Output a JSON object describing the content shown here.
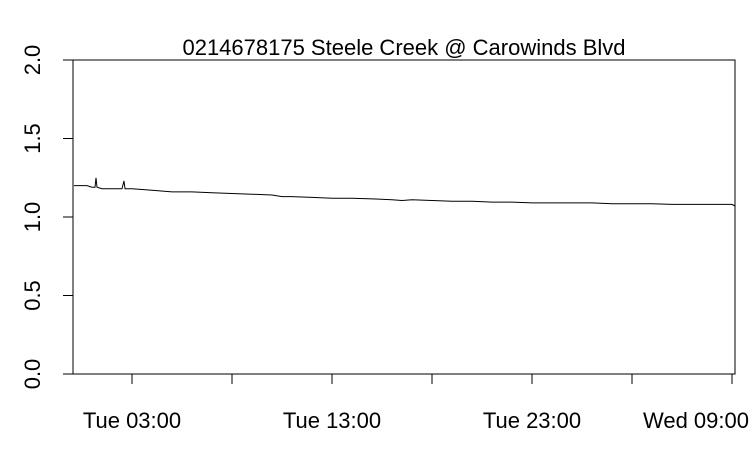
{
  "chart_data": {
    "type": "line",
    "title": "0214678175 Steele Creek @ Carowinds Blvd",
    "xlabel": "",
    "ylabel": "",
    "x_unit": "hours",
    "xlim": [
      -5.9,
      60.3
    ],
    "ylim": [
      0,
      2
    ],
    "x_ticks": [
      {
        "value": 0,
        "label": "Tue 03:00"
      },
      {
        "value": 10,
        "label": ""
      },
      {
        "value": 20,
        "label": "Tue 13:00"
      },
      {
        "value": 30,
        "label": ""
      },
      {
        "value": 40,
        "label": "Tue 23:00"
      },
      {
        "value": 50,
        "label": ""
      },
      {
        "value": 60,
        "label": "Wed 09:00"
      }
    ],
    "y_ticks": [
      {
        "value": 0.0,
        "label": "0.0"
      },
      {
        "value": 0.5,
        "label": "0.5"
      },
      {
        "value": 1.0,
        "label": "1.0"
      },
      {
        "value": 1.5,
        "label": "1.5"
      },
      {
        "value": 2.0,
        "label": "2.0"
      }
    ],
    "grid": false,
    "series": [
      {
        "values": [
          [
            -5.8,
            1.2
          ],
          [
            -4.5,
            1.2
          ],
          [
            -4.0,
            1.19
          ],
          [
            -3.7,
            1.19
          ],
          [
            -3.6,
            1.25
          ],
          [
            -3.5,
            1.19
          ],
          [
            -3.0,
            1.18
          ],
          [
            -2.0,
            1.18
          ],
          [
            -1.0,
            1.18
          ],
          [
            -0.8,
            1.23
          ],
          [
            -0.7,
            1.18
          ],
          [
            0.0,
            1.18
          ],
          [
            2.0,
            1.17
          ],
          [
            4.0,
            1.16
          ],
          [
            6.0,
            1.16
          ],
          [
            8.0,
            1.155
          ],
          [
            10.0,
            1.15
          ],
          [
            12.0,
            1.145
          ],
          [
            14.0,
            1.14
          ],
          [
            15.0,
            1.13
          ],
          [
            16.0,
            1.13
          ],
          [
            18.0,
            1.125
          ],
          [
            20.0,
            1.12
          ],
          [
            22.0,
            1.12
          ],
          [
            24.0,
            1.115
          ],
          [
            26.0,
            1.11
          ],
          [
            27.0,
            1.105
          ],
          [
            28.0,
            1.11
          ],
          [
            30.0,
            1.105
          ],
          [
            32.0,
            1.1
          ],
          [
            34.0,
            1.1
          ],
          [
            36.0,
            1.095
          ],
          [
            38.0,
            1.095
          ],
          [
            40.0,
            1.09
          ],
          [
            42.0,
            1.09
          ],
          [
            44.0,
            1.09
          ],
          [
            46.0,
            1.09
          ],
          [
            48.0,
            1.085
          ],
          [
            50.0,
            1.085
          ],
          [
            52.0,
            1.085
          ],
          [
            54.0,
            1.08
          ],
          [
            56.0,
            1.08
          ],
          [
            58.0,
            1.08
          ],
          [
            60.0,
            1.08
          ],
          [
            60.3,
            1.07
          ]
        ]
      }
    ]
  }
}
